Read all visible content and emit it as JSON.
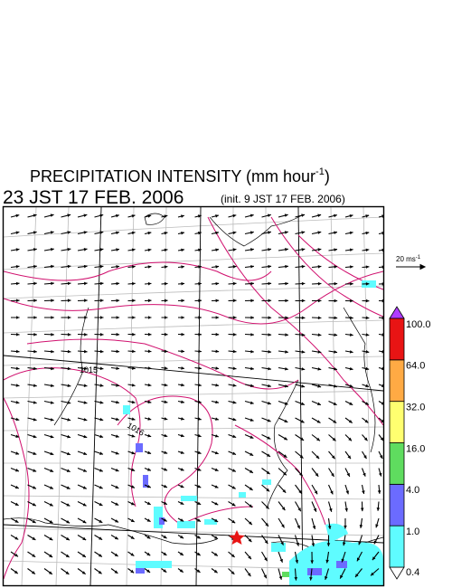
{
  "title": {
    "main": "PRECIPITATION INTENSITY (mm hour",
    "sup": "-1",
    "end": ")"
  },
  "valid_time": "23 JST 17 FEB. 2006",
  "init_time": "(init. 9 JST 17 FEB. 2006)",
  "wind_reference": {
    "main": "20 ms",
    "sup": "-1"
  },
  "contour_labels": [
    "1015",
    "1016"
  ],
  "colorbar": {
    "levels": [
      {
        "value": 0.4,
        "label": "0.4"
      },
      {
        "value": 1.0,
        "label": "1.0"
      },
      {
        "value": 4.0,
        "label": "4.0"
      },
      {
        "value": 16.0,
        "label": "16.0"
      },
      {
        "value": 32.0,
        "label": "32.0"
      },
      {
        "value": 64.0,
        "label": "64.0"
      },
      {
        "value": 100.0,
        "label": "100.0"
      }
    ],
    "colors": [
      "#5ffcff",
      "#6b6bff",
      "#5fdc5f",
      "#ffff70",
      "#ffaa44",
      "#e81414"
    ],
    "under_color": "#ffffff",
    "over_color": "#b03cff"
  }
}
